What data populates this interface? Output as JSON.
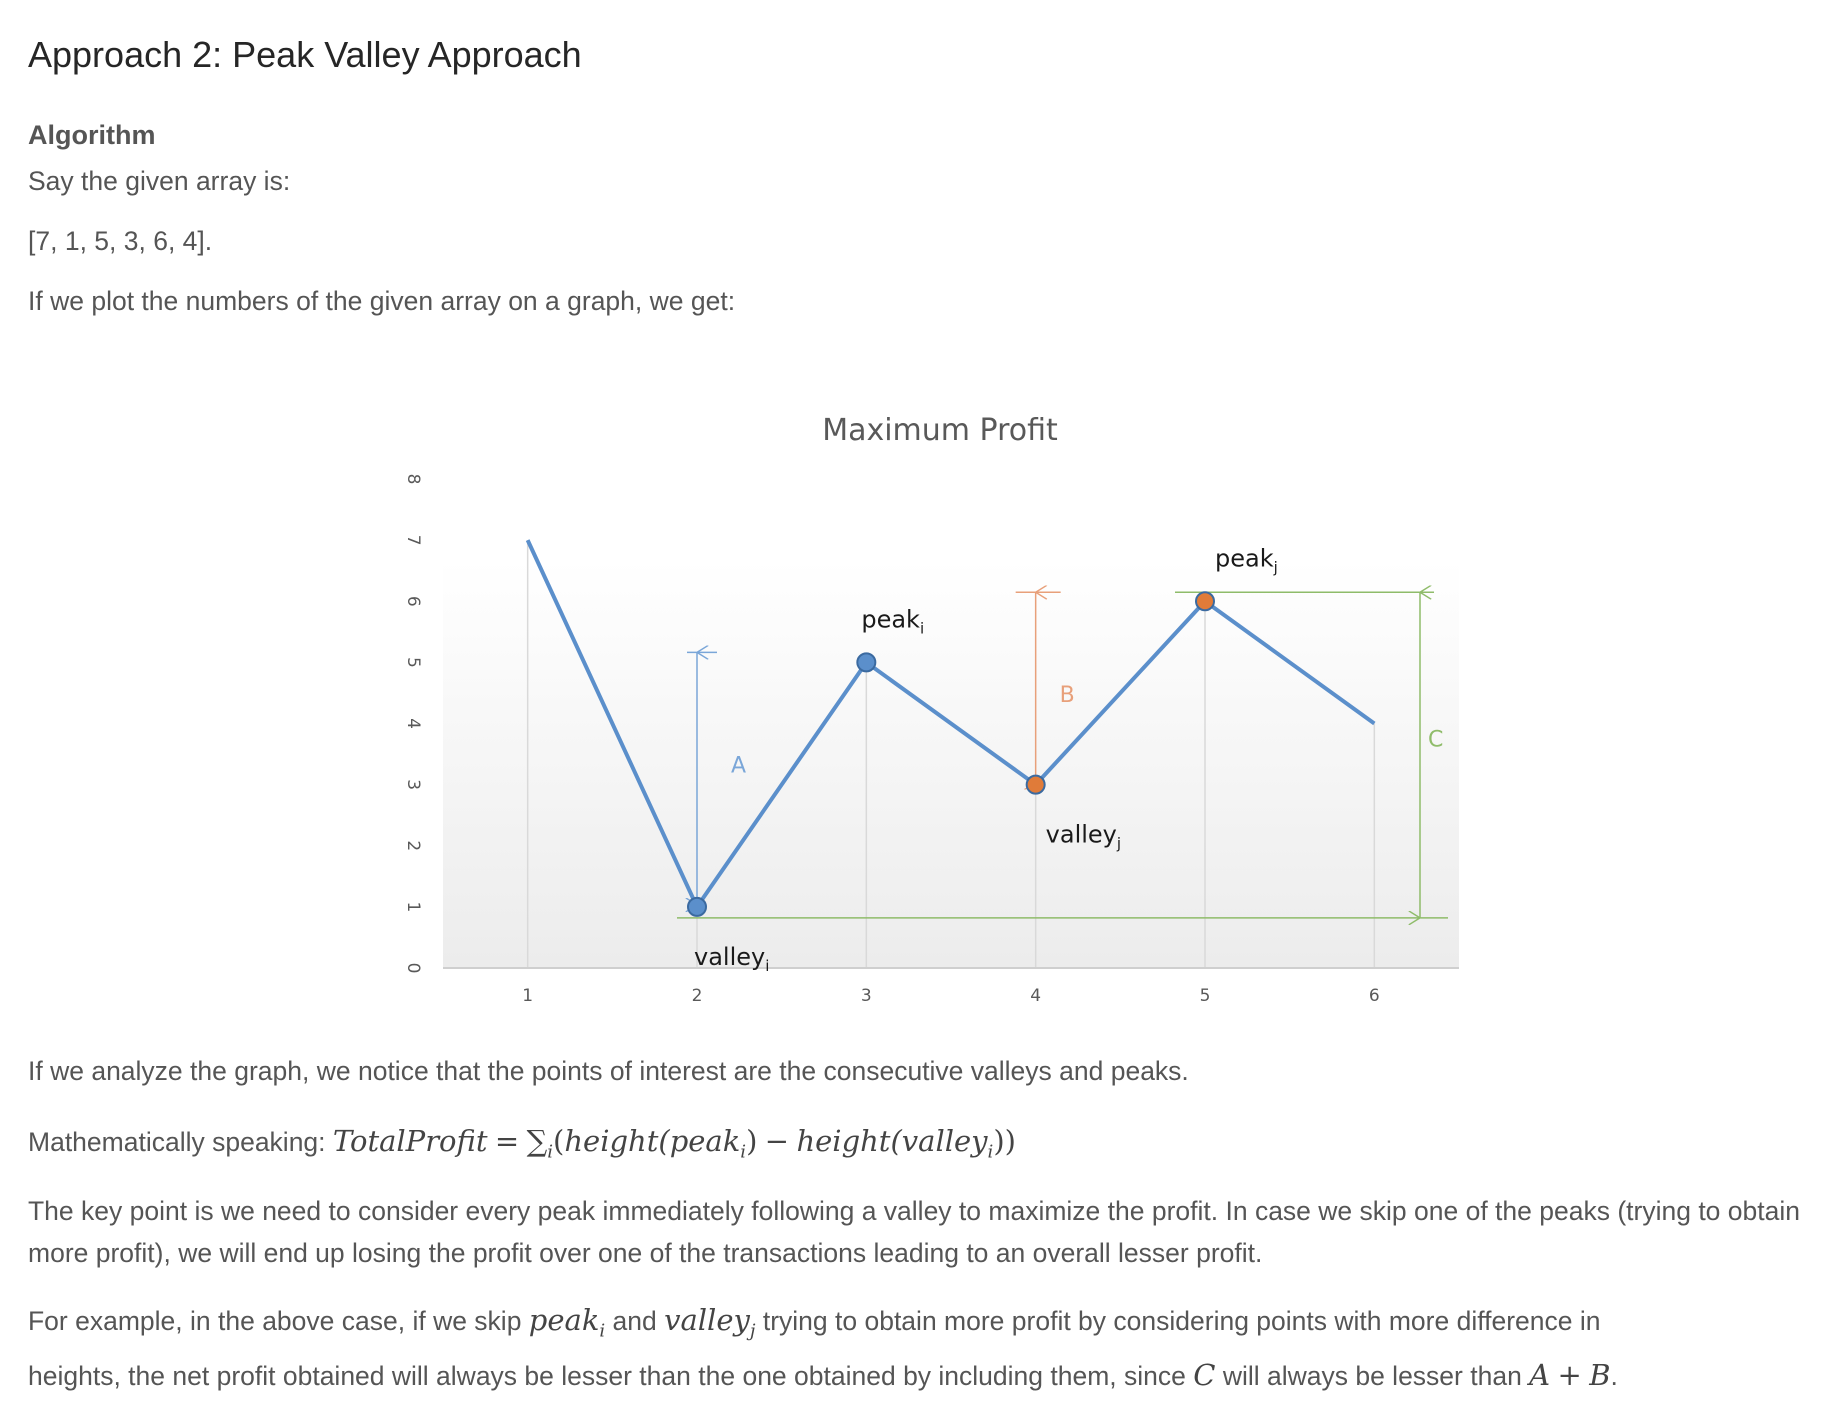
{
  "heading": "Approach 2: Peak Valley Approach",
  "subheading": "Algorithm",
  "p1": "Say the given array is:",
  "p2": "[7, 1, 5, 3, 6, 4].",
  "p3": "If we plot the numbers of the given array on a graph, we get:",
  "p4": "If we analyze the graph, we notice that the points of interest are the consecutive valleys and peaks.",
  "p5_prefix": "Mathematically speaking:",
  "p5_formula": {
    "lhs": "TotalProfit",
    "eq": "=",
    "sum": "∑",
    "sum_sub": "i",
    "open": "(",
    "h1": "height(peak",
    "h1_sub": "i",
    "h1_close": ")",
    "minus": "−",
    "h2": "height(valley",
    "h2_sub": "i",
    "h2_close": "))"
  },
  "p6": "The key point is we need to consider every peak immediately following a valley to maximize the profit. In case we skip one of the peaks (trying to obtain more profit), we will end up losing the profit over one of the transactions leading to an overall lesser profit.",
  "p7": {
    "a": "For example, in the above case, if we skip ",
    "peak": "peak",
    "peak_sub": "i",
    "b": " and ",
    "valley": "valley",
    "valley_sub": "j",
    "c": " trying to obtain more profit by considering points with more difference in",
    "d": "heights, the net profit obtained will always be lesser than the one obtained by including them, since ",
    "C": "C",
    "e": " will always be lesser than ",
    "A": "A",
    "plus": "+",
    "B": "B",
    "f": "."
  },
  "chart_data": {
    "type": "line",
    "title": "Maximum Profit",
    "xlabel": "",
    "ylabel": "",
    "x": [
      1,
      2,
      3,
      4,
      5,
      6
    ],
    "series": [
      {
        "values": [
          7,
          1,
          5,
          3,
          6,
          4
        ]
      }
    ],
    "xlim": [
      0.5,
      6.5
    ],
    "ylim": [
      0,
      8
    ],
    "yticks": [
      "0",
      "1",
      "2",
      "3",
      "4",
      "5",
      "6",
      "7",
      "8"
    ],
    "xticks": [
      "1",
      "2",
      "3",
      "4",
      "5",
      "6"
    ],
    "grid": "vertical",
    "legend": "none",
    "line_color": "#5b8fcb",
    "markers": [
      {
        "x": 2,
        "y": 1,
        "color": "#5b8fcb",
        "label": "valley",
        "sub": "i",
        "pos": "below"
      },
      {
        "x": 3,
        "y": 5,
        "color": "#5b8fcb",
        "label": "peak",
        "sub": "i",
        "pos": "above"
      },
      {
        "x": 4,
        "y": 3,
        "color": "#e07b39",
        "label": "valley",
        "sub": "j",
        "pos": "below"
      },
      {
        "x": 5,
        "y": 6,
        "color": "#e07b39",
        "label": "peak",
        "sub": "j",
        "pos": "above"
      }
    ],
    "annotations": [
      {
        "label": "A",
        "color": "#7aa6d8",
        "from": 1,
        "to": 5
      },
      {
        "label": "B",
        "color": "#e8a07a",
        "from": 3,
        "to": 6
      },
      {
        "label": "C",
        "color": "#8fbc6a",
        "from": 1,
        "to": 6
      }
    ]
  }
}
